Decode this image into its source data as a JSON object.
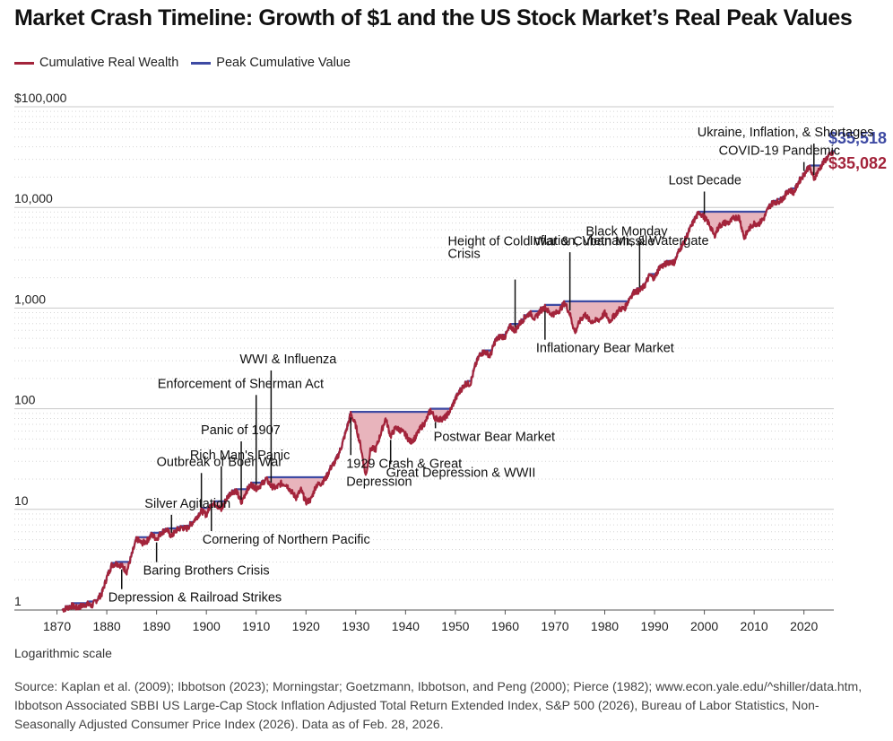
{
  "title": "Market Crash Timeline: Growth of $1 and the US Stock Market’s Real Peak Values",
  "legend": [
    {
      "label": "Cumulative Real Wealth",
      "color": "#a3243b"
    },
    {
      "label": "Peak Cumulative Value",
      "color": "#3e4aa3"
    }
  ],
  "scale_note": "Logarithmic scale",
  "source": "Source: Kaplan et al. (2009); Ibbotson (2023); Morningstar; Goetzmann, Ibbotson, and Peng (2000); Pierce (1982); www.econ.yale.edu/^shiller/data.htm, Ibbotson Associated SBBI US Large-Cap Stock Inflation Adjusted Total Return Extended Index, S&P 500 (2026), Bureau of Labor Statistics, Non-Seasonally Adjusted Consumer Price Index (2026). Data as of Feb. 28, 2026.",
  "colors": {
    "wealth": "#a3243b",
    "peak": "#3e4aa3",
    "drawdown_fill": "#e8b4bc",
    "grid": "#c8c8c8"
  },
  "chart_data": {
    "type": "line",
    "y_scale": "log",
    "xlim": [
      1869,
      2026
    ],
    "ylim": [
      1,
      100000
    ],
    "x_ticks": [
      1870,
      1880,
      1890,
      1900,
      1910,
      1920,
      1930,
      1940,
      1950,
      1960,
      1970,
      1980,
      1990,
      2000,
      2010,
      2020
    ],
    "y_ticks": [
      {
        "value": 1,
        "label": "1"
      },
      {
        "value": 10,
        "label": "10"
      },
      {
        "value": 100,
        "label": "100"
      },
      {
        "value": 1000,
        "label": "1,000"
      },
      {
        "value": 10000,
        "label": "10,000"
      },
      {
        "value": 100000,
        "label": "$100,000"
      }
    ],
    "series": [
      {
        "name": "Cumulative Real Wealth",
        "points": [
          [
            1871,
            1.0
          ],
          [
            1873,
            1.1
          ],
          [
            1874,
            1.05
          ],
          [
            1876,
            1.15
          ],
          [
            1877,
            1.1
          ],
          [
            1879,
            1.45
          ],
          [
            1880,
            2.1
          ],
          [
            1881,
            2.8
          ],
          [
            1882,
            2.9
          ],
          [
            1883,
            2.75
          ],
          [
            1884,
            2.4
          ],
          [
            1885,
            3.5
          ],
          [
            1886,
            5.1
          ],
          [
            1887,
            4.6
          ],
          [
            1888,
            4.8
          ],
          [
            1889,
            5.6
          ],
          [
            1890,
            5.1
          ],
          [
            1891,
            5.9
          ],
          [
            1892,
            6.3
          ],
          [
            1893,
            5.4
          ],
          [
            1894,
            6.2
          ],
          [
            1895,
            6.6
          ],
          [
            1896,
            6.4
          ],
          [
            1897,
            7.2
          ],
          [
            1898,
            8.3
          ],
          [
            1899,
            9.7
          ],
          [
            1900,
            8.8
          ],
          [
            1901,
            11.5
          ],
          [
            1902,
            11.2
          ],
          [
            1903,
            9.8
          ],
          [
            1904,
            12.7
          ],
          [
            1905,
            14.9
          ],
          [
            1906,
            15.3
          ],
          [
            1907,
            11.5
          ],
          [
            1908,
            15.1
          ],
          [
            1909,
            17.6
          ],
          [
            1910,
            16.2
          ],
          [
            1911,
            17.5
          ],
          [
            1912,
            20.1
          ],
          [
            1913,
            17.0
          ],
          [
            1914,
            16.3
          ],
          [
            1915,
            18.1
          ],
          [
            1916,
            17.8
          ],
          [
            1917,
            15.2
          ],
          [
            1918,
            13.1
          ],
          [
            1919,
            15.6
          ],
          [
            1920,
            11.8
          ],
          [
            1921,
            12.5
          ],
          [
            1922,
            17.2
          ],
          [
            1923,
            18.1
          ],
          [
            1924,
            20.4
          ],
          [
            1925,
            26.1
          ],
          [
            1926,
            30.3
          ],
          [
            1927,
            40.2
          ],
          [
            1928,
            58.4
          ],
          [
            1929,
            89.0
          ],
          [
            1930,
            68.0
          ],
          [
            1931,
            42.0
          ],
          [
            1932,
            21.5
          ],
          [
            1933,
            40.1
          ],
          [
            1934,
            39.6
          ],
          [
            1935,
            56.3
          ],
          [
            1936,
            80.1
          ],
          [
            1937,
            53.2
          ],
          [
            1938,
            64.5
          ],
          [
            1939,
            61.2
          ],
          [
            1940,
            55.0
          ],
          [
            1941,
            46.8
          ],
          [
            1942,
            52.1
          ],
          [
            1943,
            64.2
          ],
          [
            1944,
            73.8
          ],
          [
            1945,
            96.7
          ],
          [
            1946,
            80.2
          ],
          [
            1947,
            78.4
          ],
          [
            1948,
            82.1
          ],
          [
            1949,
            96.5
          ],
          [
            1950,
            124.7
          ],
          [
            1951,
            151.6
          ],
          [
            1952,
            176.8
          ],
          [
            1953,
            176.4
          ],
          [
            1954,
            267.5
          ],
          [
            1955,
            352.4
          ],
          [
            1956,
            368.1
          ],
          [
            1957,
            334.2
          ],
          [
            1958,
            471.6
          ],
          [
            1959,
            524.0
          ],
          [
            1960,
            520.2
          ],
          [
            1961,
            656.7
          ],
          [
            1962,
            596.3
          ],
          [
            1963,
            710.2
          ],
          [
            1964,
            812.8
          ],
          [
            1965,
            893.4
          ],
          [
            1966,
            777.5
          ],
          [
            1967,
            939.4
          ],
          [
            1968,
            1014.8
          ],
          [
            1969,
            881.2
          ],
          [
            1970,
            874.0
          ],
          [
            1971,
            964.0
          ],
          [
            1972,
            1128.0
          ],
          [
            1973,
            870.6
          ],
          [
            1974,
            571.2
          ],
          [
            1975,
            739.1
          ],
          [
            1976,
            872.5
          ],
          [
            1977,
            743.0
          ],
          [
            1978,
            744.3
          ],
          [
            1979,
            773.7
          ],
          [
            1980,
            887.2
          ],
          [
            1981,
            745.0
          ],
          [
            1982,
            849.6
          ],
          [
            1983,
            978.0
          ],
          [
            1984,
            989.1
          ],
          [
            1985,
            1263.2
          ],
          [
            1986,
            1463.4
          ],
          [
            1987,
            1478.4
          ],
          [
            1988,
            1670.2
          ],
          [
            1989,
            2108.3
          ],
          [
            1990,
            1986.5
          ],
          [
            1991,
            2547.2
          ],
          [
            1992,
            2682.9
          ],
          [
            1993,
            2885.9
          ],
          [
            1994,
            2836.2
          ],
          [
            1995,
            3810.9
          ],
          [
            1996,
            4560.8
          ],
          [
            1997,
            5938.5
          ],
          [
            1998,
            7522.6
          ],
          [
            1999,
            8987.5
          ],
          [
            2000,
            7928.6
          ],
          [
            2001,
            6818.2
          ],
          [
            2002,
            5190.3
          ],
          [
            2003,
            6542.2
          ],
          [
            2004,
            7007.3
          ],
          [
            2005,
            7057.0
          ],
          [
            2006,
            7908.3
          ],
          [
            2007,
            8004.5
          ],
          [
            2008,
            4962.2
          ],
          [
            2009,
            6138.2
          ],
          [
            2010,
            6931.8
          ],
          [
            2011,
            6925.3
          ],
          [
            2012,
            7860.4
          ],
          [
            2013,
            10177.6
          ],
          [
            2014,
            11374.6
          ],
          [
            2015,
            11435.2
          ],
          [
            2016,
            12605.0
          ],
          [
            2017,
            15013.7
          ],
          [
            2018,
            14066.0
          ],
          [
            2019,
            18133.5
          ],
          [
            2020,
            21178.6
          ],
          [
            2021,
            25497.3
          ],
          [
            2022,
            19337.8
          ],
          [
            2023,
            23584.9
          ],
          [
            2024,
            28361.4
          ],
          [
            2025,
            32500.0
          ],
          [
            2026,
            35082.0
          ]
        ]
      },
      {
        "name": "Peak Cumulative Value",
        "points": []
      }
    ],
    "end_labels": [
      {
        "series": "Peak Cumulative Value",
        "text": "$35,518",
        "value": 35518
      },
      {
        "series": "Cumulative Real Wealth",
        "text": "$35,082",
        "value": 35082
      }
    ],
    "annotations": [
      {
        "text": [
          "Silver Agitation"
        ],
        "year": 1893,
        "side": "above"
      },
      {
        "text": [
          "Outbreak of Boer War"
        ],
        "year": 1899,
        "side": "above"
      },
      {
        "text": [
          "Rich Man's Panic"
        ],
        "year": 1903,
        "side": "above"
      },
      {
        "text": [
          "Panic of 1907"
        ],
        "year": 1907,
        "side": "above"
      },
      {
        "text": [
          "Enforcement of Sherman Act"
        ],
        "year": 1910,
        "side": "above"
      },
      {
        "text": [
          "WWI & Influenza"
        ],
        "year": 1913,
        "side": "above"
      },
      {
        "text": [
          "Height of Cold War & Cuban Missile",
          "Crisis"
        ],
        "year": 1962,
        "side": "above"
      },
      {
        "text": [
          "Inflation, Vietnam, & Watergate"
        ],
        "year": 1973,
        "side": "above"
      },
      {
        "text": [
          "Black Monday"
        ],
        "year": 1987,
        "side": "above"
      },
      {
        "text": [
          "Lost Decade"
        ],
        "year": 2000,
        "side": "above"
      },
      {
        "text": [
          "COVID-19 Pandemic"
        ],
        "year": 2020,
        "side": "above"
      },
      {
        "text": [
          "Ukraine, Inflation, & Shortages"
        ],
        "year": 2022,
        "side": "above"
      },
      {
        "text": [
          "Depression & Railroad Strikes"
        ],
        "year": 1883,
        "side": "below"
      },
      {
        "text": [
          "Baring Brothers Crisis"
        ],
        "year": 1890,
        "side": "below"
      },
      {
        "text": [
          "Cornering of Northern Pacific"
        ],
        "year": 1901,
        "side": "below"
      },
      {
        "text": [
          "1929 Crash & Great",
          "Depression"
        ],
        "year": 1929,
        "side": "below"
      },
      {
        "text": [
          "Great Depression & WWII"
        ],
        "year": 1937,
        "side": "below"
      },
      {
        "text": [
          "Postwar Bear Market"
        ],
        "year": 1946,
        "side": "below"
      },
      {
        "text": [
          "Inflationary Bear Market"
        ],
        "year": 1968,
        "side": "below"
      }
    ]
  }
}
